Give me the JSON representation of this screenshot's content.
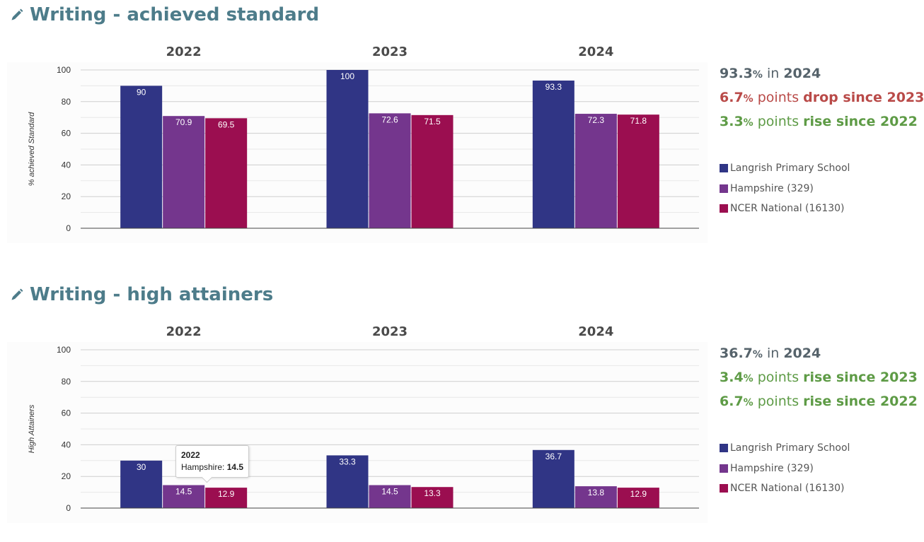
{
  "legend": [
    {
      "label": "Langrish Primary School",
      "color": "#303585"
    },
    {
      "label": "Hampshire (329)",
      "color": "#74368d"
    },
    {
      "label": "NCER National (16130)",
      "color": "#9b0e50"
    }
  ],
  "sections": [
    {
      "title": "Writing - achieved standard",
      "summary": {
        "current": {
          "value": "93.3",
          "pct": "%",
          "mid": " in ",
          "year": "2024"
        },
        "change1": {
          "value": "6.7",
          "pct": "%",
          "mid": " points ",
          "text": "drop since 2023",
          "tone": "drop"
        },
        "change2": {
          "value": "3.3",
          "pct": "%",
          "mid": " points ",
          "text": "rise since 2022",
          "tone": "rise"
        }
      },
      "chart_data": {
        "type": "bar",
        "ylabel": "% achieved Standard",
        "ylim": [
          0,
          100
        ],
        "yticks": [
          0,
          20,
          40,
          60,
          80,
          100
        ],
        "grid": true,
        "categories": [
          "2022",
          "2023",
          "2024"
        ],
        "series": [
          {
            "name": "Langrish Primary School",
            "color": "#303585",
            "values": [
              90,
              100,
              93.3
            ]
          },
          {
            "name": "Hampshire (329)",
            "color": "#74368d",
            "values": [
              70.9,
              72.6,
              72.3
            ]
          },
          {
            "name": "NCER National (16130)",
            "color": "#9b0e50",
            "values": [
              69.5,
              71.5,
              71.8
            ]
          }
        ]
      }
    },
    {
      "title": "Writing - high attainers",
      "summary": {
        "current": {
          "value": "36.7",
          "pct": "%",
          "mid": " in ",
          "year": "2024"
        },
        "change1": {
          "value": "3.4",
          "pct": "%",
          "mid": " points ",
          "text": "rise since 2023",
          "tone": "rise"
        },
        "change2": {
          "value": "6.7",
          "pct": "%",
          "mid": " points ",
          "text": "rise since 2022",
          "tone": "rise"
        }
      },
      "chart_data": {
        "type": "bar",
        "ylabel": "High Attainers",
        "ylim": [
          0,
          100
        ],
        "yticks": [
          0,
          20,
          40,
          60,
          80,
          100
        ],
        "grid": true,
        "categories": [
          "2022",
          "2023",
          "2024"
        ],
        "series": [
          {
            "name": "Langrish Primary School",
            "color": "#303585",
            "values": [
              30,
              33.3,
              36.7
            ]
          },
          {
            "name": "Hampshire (329)",
            "color": "#74368d",
            "values": [
              14.5,
              14.5,
              13.8
            ]
          },
          {
            "name": "NCER National (16130)",
            "color": "#9b0e50",
            "values": [
              12.9,
              13.3,
              12.9
            ]
          }
        ]
      },
      "tooltip": {
        "header": "2022",
        "label": "Hampshire: ",
        "value": "14.5",
        "category": "2022",
        "series": "Hampshire (329)"
      }
    }
  ]
}
